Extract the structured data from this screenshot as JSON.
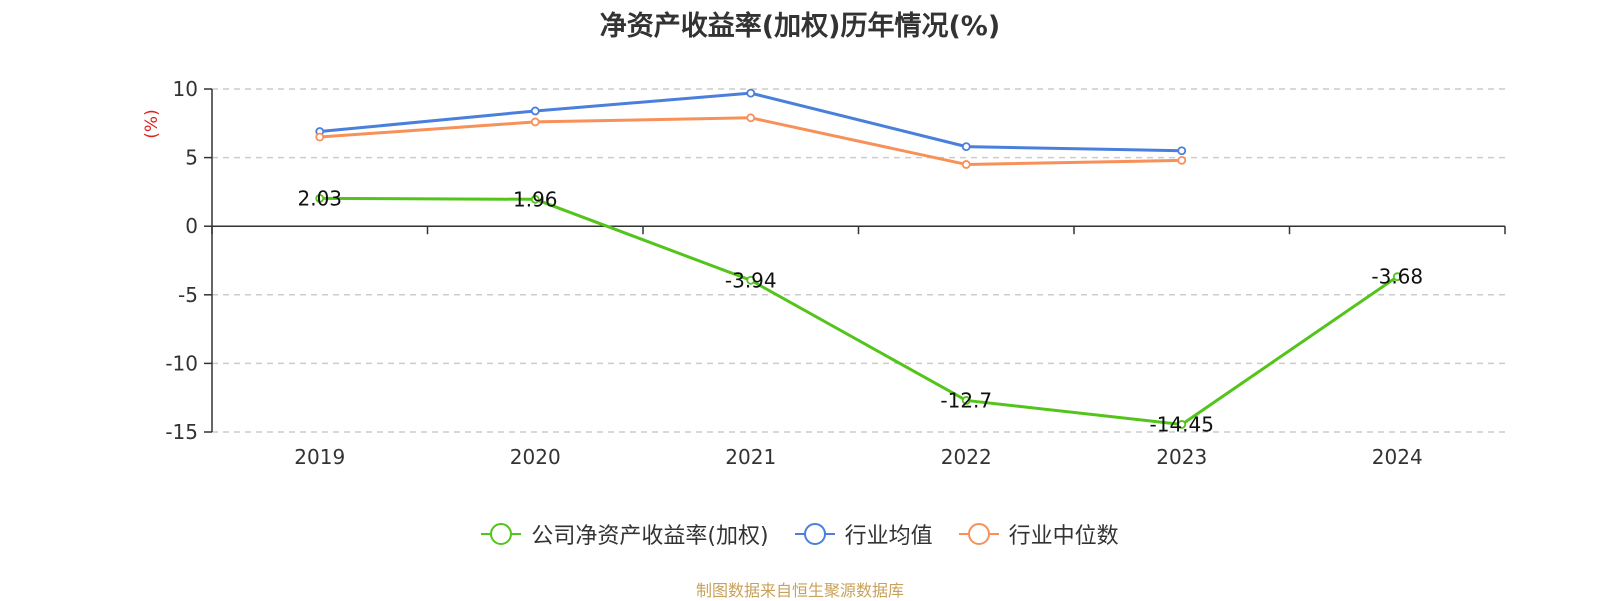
{
  "chart_data": {
    "type": "line",
    "title": "净资产收益率(加权)历年情况(%)",
    "ylabel": "(%)",
    "xlabel": "",
    "categories": [
      "2019",
      "2020",
      "2021",
      "2022",
      "2023",
      "2024"
    ],
    "ylim": [
      -15,
      10
    ],
    "yticks": [
      10,
      5,
      0,
      -5,
      -10,
      -15
    ],
    "grid": true,
    "legend_position": "bottom",
    "series": [
      {
        "name": "公司净资产收益率(加权)",
        "color": "#52c41a",
        "values": [
          2.03,
          1.96,
          -3.94,
          -12.7,
          -14.45,
          -3.68
        ],
        "labels": [
          "2.03",
          "1.96",
          "-3.94",
          "-12.7",
          "-14.45",
          "-3.68"
        ]
      },
      {
        "name": "行业均值",
        "color": "#4a7fdc",
        "values": [
          6.9,
          8.4,
          9.7,
          5.8,
          5.5,
          null
        ]
      },
      {
        "name": "行业中位数",
        "color": "#f79159",
        "values": [
          6.5,
          7.6,
          7.9,
          4.5,
          4.8,
          null
        ]
      }
    ]
  },
  "source": "制图数据来自恒生聚源数据库",
  "colors": {
    "axis_title": "#e02020",
    "grid": "#cccccc",
    "axis": "#333333"
  }
}
